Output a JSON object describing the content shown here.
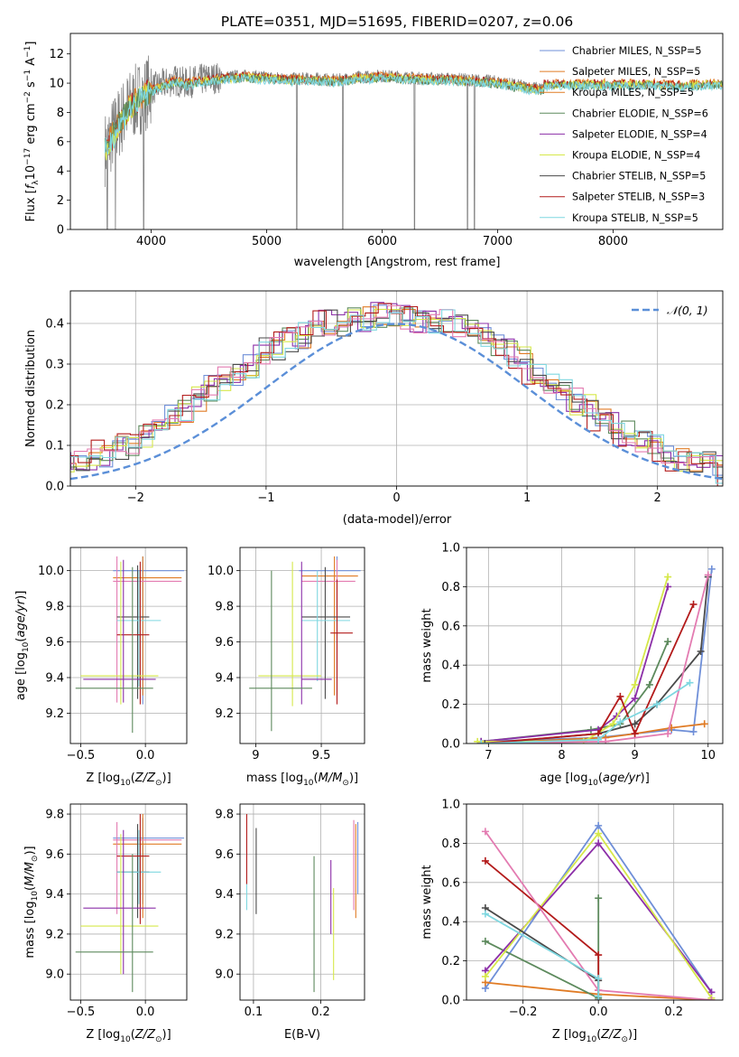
{
  "colors": {
    "s1": "#6f8fd8",
    "s2": "#e07b24",
    "s3": "#5d8a5d",
    "s4": "#8c2fa8",
    "s5": "#d6e84a",
    "s6": "#4a4a4a",
    "s7": "#b31b1b",
    "s8": "#e37bb1",
    "s9": "#7fd7e0"
  },
  "chart_data": [
    {
      "type": "line",
      "title": "PLATE=0351, MJD=51695, FIBERID=0207, z=0.06",
      "xlabel": "wavelength [Angstrom, rest frame]",
      "ylabel": "Flux [f_λ10^-17 erg cm^-2 s^-1 A^-1]",
      "xlim": [
        3300,
        8950
      ],
      "ylim": [
        0,
        13.4
      ],
      "xticks": [
        4000,
        5000,
        6000,
        7000,
        8000
      ],
      "yticks": [
        0,
        2,
        4,
        6,
        8,
        10,
        12
      ],
      "spectrum": {
        "x": [
          3600,
          3700,
          3800,
          3900,
          4000,
          4100,
          4200,
          4300,
          4400,
          4500,
          4600,
          4800,
          5000,
          5200,
          5400,
          5600,
          5800,
          6000,
          6200,
          6400,
          6600,
          6800,
          7000,
          7200,
          7400
        ],
        "y": [
          5.5,
          7.0,
          8.3,
          9.0,
          9.6,
          9.9,
          10.2,
          10.0,
          10.2,
          10.3,
          10.4,
          10.5,
          10.4,
          10.3,
          10.3,
          10.2,
          10.4,
          10.5,
          10.4,
          10.3,
          10.3,
          10.2,
          10.1,
          9.8,
          9.6
        ]
      },
      "model_extent": {
        "x": [
          8000,
          8200,
          8400,
          8600,
          8800,
          8950
        ],
        "y": [
          10.0,
          10.0,
          10.0,
          9.9,
          10.0,
          10.0
        ]
      },
      "legend": [
        {
          "name": "Chabrier MILES, N_SSP=5",
          "color": "s1"
        },
        {
          "name": "Salpeter MILES, N_SSP=5",
          "color": "s2"
        },
        {
          "name": "Kroupa MILES, N_SSP=5",
          "color": "s2"
        },
        {
          "name": "Chabrier ELODIE, N_SSP=6",
          "color": "s3"
        },
        {
          "name": "Salpeter ELODIE, N_SSP=4",
          "color": "s4"
        },
        {
          "name": "Kroupa ELODIE, N_SSP=4",
          "color": "s5"
        },
        {
          "name": "Chabrier STELIB, N_SSP=5",
          "color": "s6"
        },
        {
          "name": "Salpeter STELIB, N_SSP=3",
          "color": "s7"
        },
        {
          "name": "Kroupa STELIB, N_SSP=5",
          "color": "s9"
        }
      ]
    },
    {
      "type": "histogram",
      "xlabel": "(data-model)/error",
      "ylabel": "Normed distribution",
      "xlim": [
        -2.5,
        2.5
      ],
      "ylim": [
        0,
        0.48
      ],
      "xticks": [
        -2,
        -1,
        0,
        1,
        2
      ],
      "yticks": [
        0.0,
        0.1,
        0.2,
        0.3,
        0.4
      ],
      "legend": "𝒩(0, 1)",
      "bin_width": 0.1,
      "hist_base": [
        0.02,
        0.03,
        0.03,
        0.04,
        0.05,
        0.06,
        0.06,
        0.08,
        0.1,
        0.11,
        0.13,
        0.15,
        0.17,
        0.19,
        0.21,
        0.24,
        0.26,
        0.28,
        0.3,
        0.33,
        0.34,
        0.36,
        0.37,
        0.38,
        0.4,
        0.4,
        0.41,
        0.41,
        0.42,
        0.42,
        0.42,
        0.41,
        0.41,
        0.4,
        0.39,
        0.38,
        0.37,
        0.35,
        0.33,
        0.31,
        0.28,
        0.26,
        0.24,
        0.21,
        0.19,
        0.17,
        0.15,
        0.13,
        0.11,
        0.1,
        0.08,
        0.07,
        0.05,
        0.05,
        0.04,
        0.03,
        0.03,
        0.02,
        0.02,
        0.02
      ],
      "curve": "normal(0,1)"
    },
    {
      "type": "errorbar",
      "xlabel": "Z [log10(Z/Z⊙)]",
      "ylabel": "age  [log10(age/yr)]",
      "xlim": [
        -0.58,
        0.32
      ],
      "ylim": [
        9.03,
        10.13
      ],
      "xticks": [
        -0.5,
        0.0
      ],
      "xticklabels": [
        "−0.5",
        "0.0"
      ],
      "yticks": [
        9.2,
        9.4,
        9.6,
        9.8,
        10.0
      ],
      "points": [
        {
          "c": "s1",
          "x": -0.02,
          "y": 10.0,
          "xe": [
            -0.25,
            0.3
          ],
          "ye": [
            9.25,
            10.08
          ]
        },
        {
          "c": "s2",
          "x": -0.02,
          "y": 9.96,
          "xe": [
            -0.25,
            0.28
          ],
          "ye": [
            9.3,
            10.08
          ]
        },
        {
          "c": "s8",
          "x": -0.22,
          "y": 9.94,
          "xe": [
            -0.25,
            0.28
          ],
          "ye": [
            9.26,
            10.08
          ]
        },
        {
          "c": "s6",
          "x": -0.06,
          "y": 9.74,
          "xe": [
            -0.22,
            0.03
          ],
          "ye": [
            9.28,
            10.03
          ]
        },
        {
          "c": "s9",
          "x": -0.05,
          "y": 9.72,
          "xe": [
            -0.22,
            0.12
          ],
          "ye": [
            9.35,
            10.0
          ]
        },
        {
          "c": "s7",
          "x": -0.04,
          "y": 9.64,
          "xe": [
            -0.22,
            0.03
          ],
          "ye": [
            9.25,
            10.05
          ]
        },
        {
          "c": "s5",
          "x": -0.19,
          "y": 9.41,
          "xe": [
            -0.5,
            0.1
          ],
          "ye": [
            9.25,
            10.05
          ]
        },
        {
          "c": "s4",
          "x": -0.17,
          "y": 9.39,
          "xe": [
            -0.48,
            0.08
          ],
          "ye": [
            9.26,
            10.06
          ]
        },
        {
          "c": "s3",
          "x": -0.1,
          "y": 9.34,
          "xe": [
            -0.54,
            0.06
          ],
          "ye": [
            9.09,
            10.02
          ]
        }
      ]
    },
    {
      "type": "errorbar",
      "xlabel": "mass [log10(M/M⊙)]",
      "xlim": [
        8.88,
        9.83
      ],
      "ylim": [
        9.03,
        10.13
      ],
      "xticks": [
        9.0,
        9.5
      ],
      "yticks": [
        9.2,
        9.4,
        9.6,
        9.8,
        10.0
      ],
      "points": [
        {
          "c": "s1",
          "x": 9.62,
          "y": 10.0,
          "xe": [
            9.33,
            9.8
          ],
          "ye": [
            9.3,
            10.08
          ]
        },
        {
          "c": "s2",
          "x": 9.6,
          "y": 9.97,
          "xe": [
            9.35,
            9.78
          ],
          "ye": [
            9.3,
            10.08
          ]
        },
        {
          "c": "s8",
          "x": 9.62,
          "y": 9.94,
          "xe": [
            9.35,
            9.76
          ],
          "ye": [
            9.27,
            10.06
          ]
        },
        {
          "c": "s6",
          "x": 9.53,
          "y": 9.74,
          "xe": [
            9.35,
            9.72
          ],
          "ye": [
            9.28,
            10.02
          ]
        },
        {
          "c": "s9",
          "x": 9.47,
          "y": 9.72,
          "xe": [
            9.35,
            9.72
          ],
          "ye": [
            9.38,
            10.0
          ]
        },
        {
          "c": "s7",
          "x": 9.62,
          "y": 9.65,
          "xe": [
            9.57,
            9.74
          ],
          "ye": [
            9.25,
            9.95
          ]
        },
        {
          "c": "s5",
          "x": 9.28,
          "y": 9.41,
          "xe": [
            9.02,
            9.5
          ],
          "ye": [
            9.24,
            10.05
          ]
        },
        {
          "c": "s4",
          "x": 9.35,
          "y": 9.39,
          "xe": [
            9.35,
            9.58
          ],
          "ye": [
            9.25,
            10.05
          ]
        },
        {
          "c": "s3",
          "x": 9.12,
          "y": 9.34,
          "xe": [
            8.95,
            9.43
          ],
          "ye": [
            9.1,
            10.0
          ]
        }
      ]
    },
    {
      "type": "line",
      "xlabel": "age  [log10(age/yr)]",
      "ylabel": "mass weight",
      "xlim": [
        6.7,
        10.2
      ],
      "ylim": [
        0,
        1.0
      ],
      "xticks": [
        7,
        8,
        9,
        10
      ],
      "yticks": [
        0.0,
        0.2,
        0.4,
        0.6,
        0.8,
        1.0
      ],
      "series": [
        {
          "c": "s1",
          "x": [
            6.9,
            8.5,
            9.0,
            9.5,
            9.8,
            10.05
          ],
          "y": [
            0.01,
            0.03,
            0.05,
            0.07,
            0.06,
            0.89
          ]
        },
        {
          "c": "s2",
          "x": [
            6.9,
            8.6,
            9.0,
            9.5,
            9.95
          ],
          "y": [
            0.0,
            0.03,
            0.05,
            0.08,
            0.1
          ]
        },
        {
          "c": "s3",
          "x": [
            6.9,
            8.4,
            8.8,
            9.2,
            9.45
          ],
          "y": [
            0.01,
            0.07,
            0.1,
            0.3,
            0.52
          ]
        },
        {
          "c": "s4",
          "x": [
            6.9,
            8.5,
            8.75,
            9.0,
            9.45
          ],
          "y": [
            0.01,
            0.07,
            0.14,
            0.23,
            0.8
          ]
        },
        {
          "c": "s5",
          "x": [
            6.85,
            8.3,
            8.7,
            9.0,
            9.45
          ],
          "y": [
            0.01,
            0.01,
            0.1,
            0.3,
            0.85
          ]
        },
        {
          "c": "s6",
          "x": [
            6.95,
            8.5,
            9.0,
            9.3,
            9.9,
            10.0
          ],
          "y": [
            0.0,
            0.05,
            0.1,
            0.2,
            0.47,
            0.85
          ]
        },
        {
          "c": "s7",
          "x": [
            6.9,
            8.5,
            8.8,
            9.0,
            9.8
          ],
          "y": [
            0.0,
            0.05,
            0.24,
            0.05,
            0.71
          ]
        },
        {
          "c": "s8",
          "x": [
            6.9,
            8.6,
            9.45,
            10.0
          ],
          "y": [
            0.0,
            0.01,
            0.05,
            0.86
          ]
        },
        {
          "c": "s9",
          "x": [
            6.9,
            8.5,
            8.8,
            9.3,
            9.75
          ],
          "y": [
            0.0,
            0.02,
            0.11,
            0.2,
            0.31
          ]
        }
      ]
    },
    {
      "type": "errorbar",
      "xlabel": "Z [log10(Z/Z⊙)]",
      "ylabel": "mass [log10(M/M⊙)]",
      "xlim": [
        -0.58,
        0.32
      ],
      "ylim": [
        8.87,
        9.85
      ],
      "xticks": [
        -0.5,
        0.0
      ],
      "xticklabels": [
        "−0.5",
        "0.0"
      ],
      "yticks": [
        9.0,
        9.2,
        9.4,
        9.6,
        9.8
      ],
      "points": [
        {
          "c": "s1",
          "x": -0.02,
          "y": 9.68,
          "xe": [
            -0.25,
            0.3
          ],
          "ye": [
            9.35,
            9.78
          ]
        },
        {
          "c": "s2",
          "x": -0.02,
          "y": 9.65,
          "xe": [
            -0.25,
            0.28
          ],
          "ye": [
            9.28,
            9.8
          ]
        },
        {
          "c": "s8",
          "x": -0.22,
          "y": 9.67,
          "xe": [
            -0.25,
            0.28
          ],
          "ye": [
            9.3,
            9.76
          ]
        },
        {
          "c": "s6",
          "x": -0.06,
          "y": 9.51,
          "xe": [
            -0.22,
            0.03
          ],
          "ye": [
            9.28,
            9.75
          ]
        },
        {
          "c": "s9",
          "x": -0.05,
          "y": 9.51,
          "xe": [
            -0.22,
            0.12
          ],
          "ye": [
            9.35,
            9.72
          ]
        },
        {
          "c": "s7",
          "x": -0.04,
          "y": 9.59,
          "xe": [
            -0.22,
            0.03
          ],
          "ye": [
            9.25,
            9.8
          ]
        },
        {
          "c": "s5",
          "x": -0.19,
          "y": 9.24,
          "xe": [
            -0.5,
            0.1
          ],
          "ye": [
            9.0,
            9.7
          ]
        },
        {
          "c": "s4",
          "x": -0.17,
          "y": 9.33,
          "xe": [
            -0.48,
            0.08
          ],
          "ye": [
            9.0,
            9.72
          ]
        },
        {
          "c": "s3",
          "x": -0.1,
          "y": 9.11,
          "xe": [
            -0.54,
            0.06
          ],
          "ye": [
            8.91,
            9.6
          ]
        }
      ]
    },
    {
      "type": "errorbar",
      "xlabel": "E(B-V)",
      "xlim": [
        0.08,
        0.265
      ],
      "ylim": [
        8.87,
        9.85
      ],
      "xticks": [
        0.1,
        0.2
      ],
      "yticks": [
        9.0,
        9.2,
        9.4,
        9.6,
        9.8
      ],
      "points": [
        {
          "c": "s9",
          "x": 0.09,
          "y": 9.52,
          "ye": [
            9.32,
            9.68
          ]
        },
        {
          "c": "s7",
          "x": 0.09,
          "y": 9.6,
          "ye": [
            9.45,
            9.8
          ]
        },
        {
          "c": "s6",
          "x": 0.104,
          "y": 9.5,
          "ye": [
            9.3,
            9.73
          ]
        },
        {
          "c": "s3",
          "x": 0.19,
          "y": 9.3,
          "ye": [
            8.91,
            9.59
          ]
        },
        {
          "c": "s4",
          "x": 0.215,
          "y": 9.35,
          "ye": [
            9.2,
            9.57
          ]
        },
        {
          "c": "s5",
          "x": 0.219,
          "y": 9.2,
          "ye": [
            8.97,
            9.43
          ]
        },
        {
          "c": "s8",
          "x": 0.249,
          "y": 9.6,
          "ye": [
            9.32,
            9.77
          ]
        },
        {
          "c": "s2",
          "x": 0.252,
          "y": 9.55,
          "ye": [
            9.28,
            9.75
          ]
        },
        {
          "c": "s1",
          "x": 0.255,
          "y": 9.62,
          "ye": [
            9.4,
            9.76
          ]
        }
      ]
    },
    {
      "type": "line",
      "xlabel": "Z [log10(Z/Z⊙)]",
      "ylabel": "mass weight",
      "xlim": [
        -0.35,
        0.33
      ],
      "ylim": [
        0,
        1.0
      ],
      "xticks": [
        -0.2,
        0.0,
        0.2
      ],
      "xticklabels": [
        "−0.2",
        "0.0",
        "0.2"
      ],
      "yticks": [
        0.0,
        0.2,
        0.4,
        0.6,
        0.8,
        1.0
      ],
      "series": [
        {
          "c": "s1",
          "x": [
            -0.3,
            0.0,
            0.3
          ],
          "y": [
            0.06,
            0.89,
            0.04
          ]
        },
        {
          "c": "s2",
          "x": [
            -0.3,
            0.0,
            0.3
          ],
          "y": [
            0.09,
            0.03,
            0.0
          ]
        },
        {
          "c": "s3",
          "x": [
            -0.3,
            0.0,
            0.0
          ],
          "y": [
            0.3,
            0.01,
            0.52
          ]
        },
        {
          "c": "s4",
          "x": [
            -0.3,
            0.0,
            0.3
          ],
          "y": [
            0.15,
            0.8,
            0.04
          ]
        },
        {
          "c": "s5",
          "x": [
            -0.3,
            0.0,
            0.3
          ],
          "y": [
            0.12,
            0.85,
            0.01
          ]
        },
        {
          "c": "s6",
          "x": [
            -0.3,
            0.0,
            0.0
          ],
          "y": [
            0.47,
            0.1,
            0.0
          ]
        },
        {
          "c": "s7",
          "x": [
            -0.3,
            0.0,
            0.0
          ],
          "y": [
            0.71,
            0.23,
            0.05
          ]
        },
        {
          "c": "s8",
          "x": [
            -0.3,
            0.0,
            0.3
          ],
          "y": [
            0.86,
            0.05,
            0.0
          ]
        },
        {
          "c": "s9",
          "x": [
            -0.3,
            0.0,
            0.0
          ],
          "y": [
            0.44,
            0.11,
            0.02
          ]
        }
      ]
    }
  ]
}
